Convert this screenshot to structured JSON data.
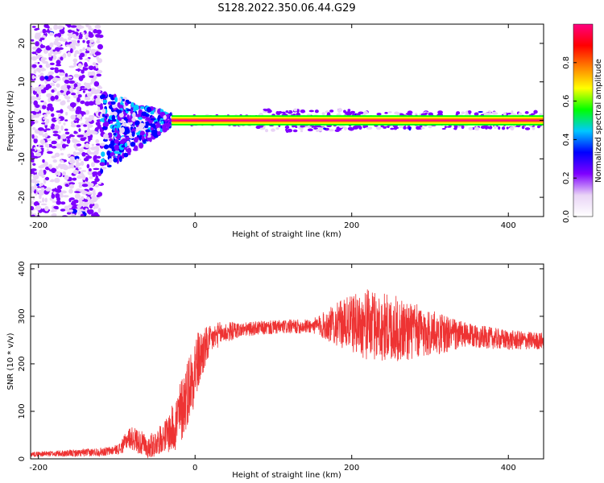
{
  "title": "S128.2022.350.06.44.G29",
  "chart_data": [
    {
      "type": "heatmap",
      "xlabel": "Height of straight line (km)",
      "ylabel": "Frequency (Hz)",
      "xlim": [
        -210,
        445
      ],
      "ylim": [
        -25,
        25
      ],
      "xticks": [
        -200,
        0,
        200,
        400
      ],
      "yticks": [
        -20,
        -10,
        0,
        10,
        20
      ],
      "colorbar": {
        "label": "Normalized spectral amplitude",
        "range": [
          0.0,
          1.0
        ],
        "ticks": [
          0.0,
          0.2,
          0.4,
          0.6,
          0.8
        ],
        "colors": [
          "#ffffff",
          "#e9d4f6",
          "#7f00ff",
          "#0000ff",
          "#00c8ff",
          "#00ff00",
          "#ffff00",
          "#ff8000",
          "#ff0000",
          "#ff0080"
        ]
      },
      "features": [
        {
          "x_range": [
            -210,
            -120
          ],
          "freq_range": [
            -25,
            25
          ],
          "amplitude": 0.15,
          "description_word": "scattered"
        },
        {
          "x_range": [
            -120,
            -30
          ],
          "freq_range": [
            -12,
            5
          ],
          "amplitude": 0.35,
          "description_word": "converging"
        },
        {
          "x_range": [
            -30,
            445
          ],
          "freq_center": 0,
          "freq_halfwidth": 0.6,
          "amplitude": 0.9,
          "description_word": "carrier"
        }
      ]
    },
    {
      "type": "line",
      "xlabel": "Height of straight line (km)",
      "ylabel": "SNR (10 * v/v)",
      "xlim": [
        -210,
        445
      ],
      "ylim": [
        0,
        410
      ],
      "xticks": [
        -200,
        0,
        200,
        400
      ],
      "yticks": [
        0,
        100,
        200,
        300,
        400
      ],
      "color": "#ee3333",
      "trend": {
        "x": [
          -210,
          -150,
          -110,
          -95,
          -85,
          -75,
          -60,
          -45,
          -30,
          -20,
          -10,
          0,
          10,
          20,
          30,
          50,
          80,
          120,
          160,
          180,
          200,
          220,
          240,
          260,
          280,
          300,
          330,
          360,
          400,
          445
        ],
        "y": [
          10,
          12,
          16,
          22,
          45,
          40,
          22,
          40,
          60,
          90,
          140,
          190,
          225,
          250,
          262,
          270,
          275,
          278,
          280,
          283,
          285,
          282,
          278,
          272,
          268,
          265,
          262,
          258,
          250,
          248
        ]
      },
      "noise": {
        "x": [
          -210,
          -100,
          -80,
          -40,
          -20,
          0,
          20,
          60,
          150,
          180,
          220,
          260,
          300,
          350,
          445
        ],
        "amp": [
          5,
          10,
          25,
          30,
          70,
          75,
          30,
          15,
          15,
          45,
          75,
          70,
          50,
          25,
          18
        ]
      }
    }
  ]
}
